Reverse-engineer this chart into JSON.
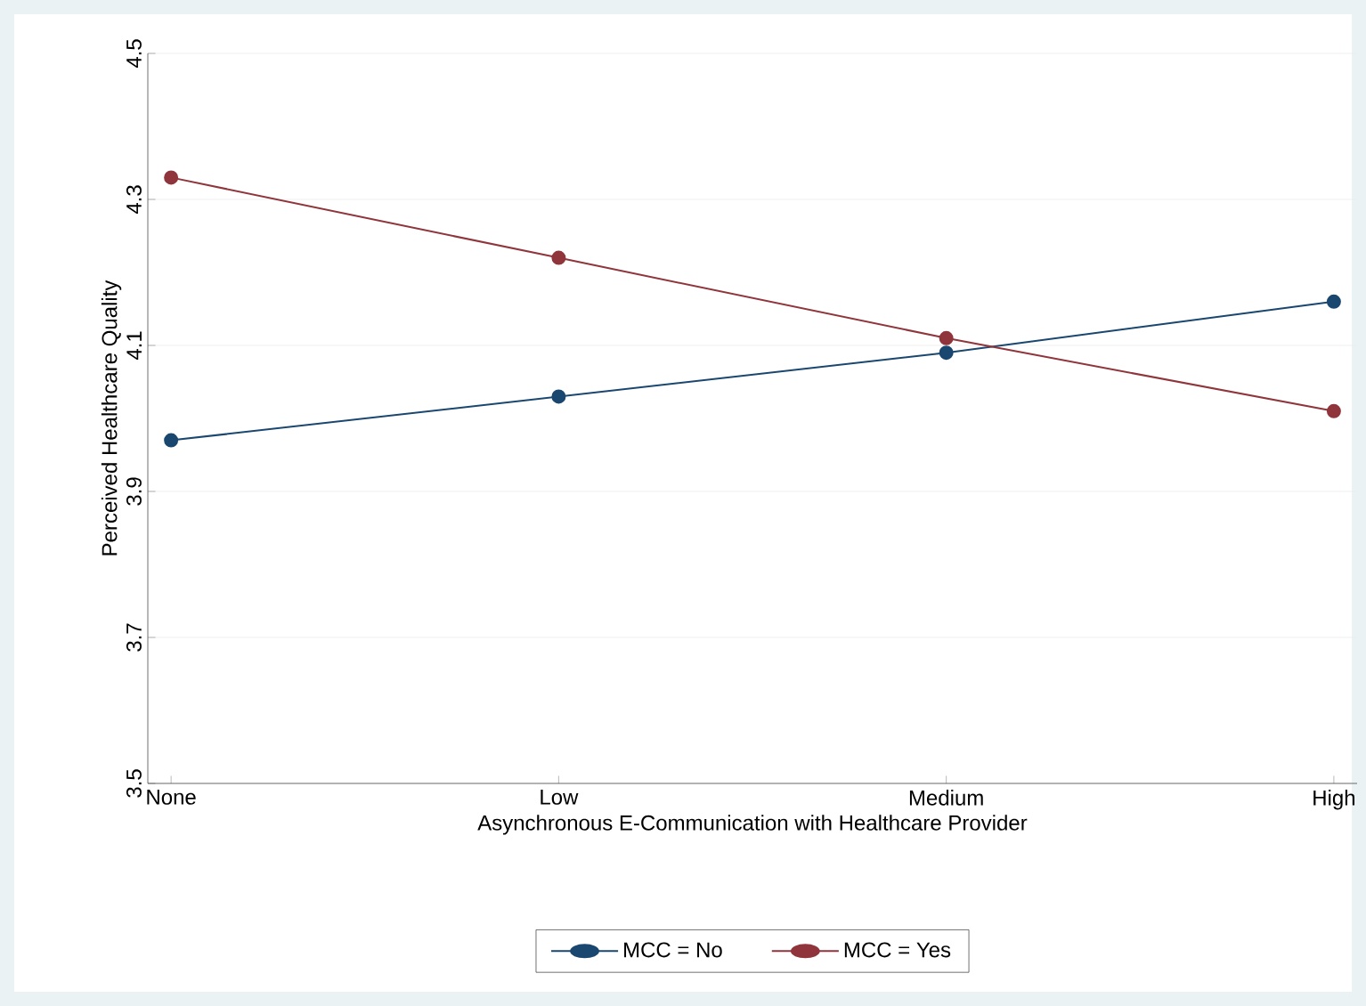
{
  "chart_data": {
    "type": "line",
    "xlabel": "Asynchronous E-Communication with Healthcare Provider",
    "ylabel": "Perceived Healthcare Quality",
    "categories": [
      "None",
      "Low",
      "Medium",
      "High"
    ],
    "series": [
      {
        "name": "MCC = No",
        "color": "#1a476f",
        "values": [
          3.97,
          4.03,
          4.09,
          4.16
        ]
      },
      {
        "name": "MCC = Yes",
        "color": "#90353b",
        "values": [
          4.33,
          4.22,
          4.11,
          4.01
        ]
      }
    ],
    "ylim": [
      3.5,
      4.5
    ],
    "yticks": [
      3.5,
      3.7,
      3.9,
      4.1,
      4.3,
      4.5
    ],
    "grid": "y",
    "legend": "bottom",
    "marker": "circle",
    "line_style": "solid"
  }
}
